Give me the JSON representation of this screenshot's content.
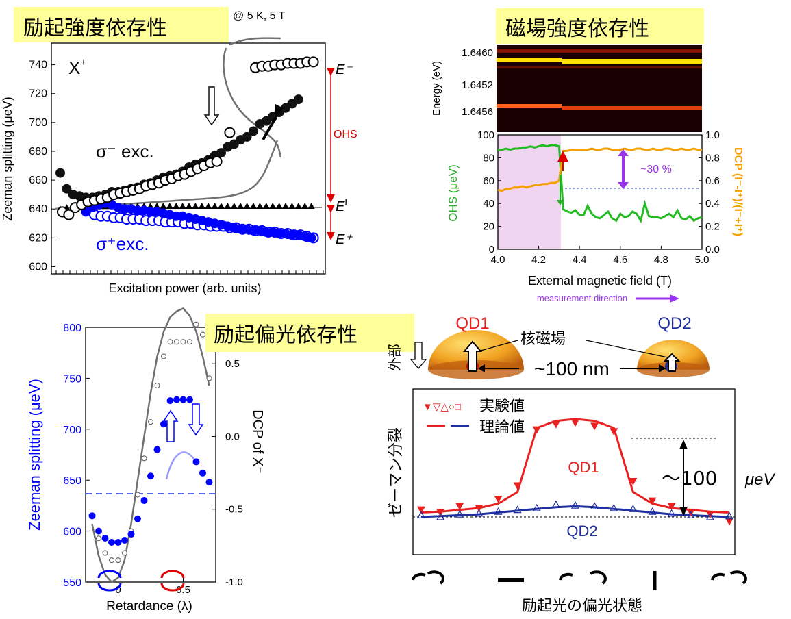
{
  "colors": {
    "highlight": "#ffff99",
    "black_series": "#000000",
    "blue_series": "#0000ff",
    "red_marker": "#e00000",
    "green_ohs": "#22bb22",
    "orange_dcp": "#f5a000",
    "purple": "#9933ee",
    "pink_region": "#f0d4f0",
    "curve_gray": "#707070",
    "qd1_red": "#e82020",
    "qd2_blue": "#2030a0"
  },
  "panels": {
    "power": {
      "heading": "励起強度依存性",
      "condition": "@ 5 K, 5 T",
      "x_plus": "X",
      "x_plus_sup": "+",
      "sigma_minus": "σ⁻ exc.",
      "sigma_plus": "σ⁺exc.",
      "e_minus": "E⁻",
      "e_l": "E",
      "e_l_sup": "L",
      "e_plus": "E⁺",
      "ohs": "OHS"
    },
    "field": {
      "heading": "磁場強度依存性",
      "energy_label": "Energy (eV)",
      "energy_ticks": [
        "1.6460",
        "1.6452",
        "1.6456"
      ],
      "dcp_axis_label": "DCP (I⁻-I⁺)/(I⁻+I⁺)",
      "percent_label": "~30 %",
      "direction_label": "measurement direction"
    },
    "polarization": {
      "heading": "励起偏光依存性",
      "right_axis_label": "DCP of X⁺"
    },
    "schematic": {
      "qd1": "QD1",
      "qd2": "QD2",
      "nuclear_field": "核磁場",
      "distance": "~100 nm",
      "external": "外部",
      "zeeman_split": "ゼーマン分裂",
      "legend_exp_markers": "▼▽△○□",
      "legend_exp": "実験値",
      "legend_theory": "理論値",
      "qd1_curve_label": "QD1",
      "qd2_curve_label": "QD2",
      "gap_label": "～100",
      "gap_unit": "μeV",
      "x_title": "励起光の偏光状態"
    }
  },
  "chart_data": [
    {
      "type": "scatter",
      "title": "",
      "xlabel": "Excitation power (arb. units)",
      "ylabel": "Zeeman splitting (μeV)",
      "ylim": [
        600,
        750
      ],
      "yticks": [
        600,
        620,
        640,
        660,
        680,
        700,
        720,
        740
      ],
      "x": [
        1,
        2,
        3,
        4,
        5,
        6,
        7,
        8,
        9,
        10,
        11,
        12,
        13,
        14,
        15,
        16,
        17,
        18,
        19,
        20,
        21,
        22,
        23,
        24,
        25,
        26,
        27,
        28,
        29,
        30,
        31,
        32,
        33,
        34,
        35,
        36,
        37,
        38,
        39,
        40
      ],
      "series": [
        {
          "name": "σ⁻ exc. filled",
          "values": [
            665,
            654,
            650,
            649,
            648,
            648,
            649,
            650,
            652,
            652,
            653,
            654,
            655,
            657,
            658,
            660,
            662,
            663,
            664,
            666,
            669,
            671,
            672,
            674,
            677,
            679,
            683,
            685,
            688,
            690,
            694,
            699,
            701,
            704,
            707,
            710,
            713,
            716,
            null,
            null
          ]
        },
        {
          "name": "σ⁻ exc. open",
          "values": [
            638,
            636,
            641,
            643,
            645,
            646,
            647,
            648,
            650,
            651,
            652,
            653,
            654,
            656,
            657,
            658,
            660,
            661,
            663,
            664,
            666,
            668,
            670,
            672,
            673,
            null,
            693,
            null,
            null,
            null,
            738,
            739,
            739,
            740,
            740,
            741,
            741,
            741,
            742,
            742
          ]
        },
        {
          "name": "σ⁺exc. filled",
          "values": [
            null,
            null,
            null,
            null,
            638,
            641,
            643,
            644,
            643,
            641,
            640,
            640,
            639,
            639,
            638,
            638,
            637,
            636,
            635,
            635,
            634,
            633,
            632,
            631,
            630,
            629,
            628,
            627,
            626,
            626,
            625,
            625,
            624,
            624,
            623,
            623,
            622,
            622,
            621,
            620
          ]
        },
        {
          "name": "σ⁺exc. open",
          "values": [
            null,
            null,
            null,
            null,
            640,
            636,
            635,
            635,
            634,
            634,
            633,
            633,
            633,
            632,
            632,
            632,
            631,
            631,
            631,
            630,
            630,
            629,
            629,
            628,
            628,
            628,
            627,
            627,
            626,
            626,
            625,
            625,
            624,
            624,
            623,
            623,
            622,
            622,
            621,
            620
          ]
        },
        {
          "name": "linear triangles",
          "values": [
            640,
            641,
            641,
            641,
            642,
            642,
            642,
            642,
            642,
            642,
            642,
            642,
            642,
            642,
            642,
            642,
            642,
            642,
            642,
            642,
            642,
            642,
            642,
            642,
            642,
            642,
            642,
            642,
            642,
            642,
            642,
            642,
            642,
            642,
            642,
            642,
            642,
            642,
            642,
            642
          ]
        }
      ],
      "legend_position": "none"
    },
    {
      "type": "line",
      "title": "",
      "xlabel": "External magnetic field (T)",
      "ylabel": "OHS (μeV)",
      "y2label": "DCP (I⁻-I⁺)/(I⁻+I⁺)",
      "xlim": [
        4.0,
        5.0
      ],
      "ylim": [
        0,
        100
      ],
      "y2lim": [
        0,
        1.0
      ],
      "xticks": [
        4.0,
        4.2,
        4.4,
        4.6,
        4.8,
        5.0
      ],
      "yticks": [
        0,
        20,
        40,
        60,
        80,
        100
      ],
      "y2ticks": [
        0.0,
        0.2,
        0.4,
        0.6,
        0.8,
        1.0
      ],
      "x": [
        4.0,
        4.02,
        4.04,
        4.06,
        4.08,
        4.1,
        4.12,
        4.14,
        4.16,
        4.18,
        4.2,
        4.22,
        4.24,
        4.26,
        4.28,
        4.3,
        4.32,
        4.34,
        4.36,
        4.38,
        4.4,
        4.42,
        4.44,
        4.46,
        4.48,
        4.5,
        4.52,
        4.54,
        4.56,
        4.58,
        4.6,
        4.62,
        4.64,
        4.66,
        4.68,
        4.7,
        4.72,
        4.74,
        4.76,
        4.78,
        4.8,
        4.82,
        4.84,
        4.86,
        4.88,
        4.9,
        4.92,
        4.94,
        4.96,
        4.98,
        5.0
      ],
      "series": [
        {
          "name": "OHS",
          "axis": "left",
          "values": [
            87,
            87,
            88,
            87,
            88,
            88,
            89,
            89,
            90,
            89,
            90,
            91,
            90,
            91,
            91,
            90,
            35,
            33,
            32,
            34,
            30,
            30,
            38,
            31,
            28,
            27,
            30,
            33,
            27,
            25,
            31,
            28,
            29,
            33,
            31,
            25,
            40,
            29,
            28,
            28,
            27,
            29,
            31,
            28,
            34,
            27,
            26,
            29,
            25,
            27,
            28
          ]
        },
        {
          "name": "DCP",
          "axis": "right",
          "values": [
            0.52,
            0.51,
            0.53,
            0.53,
            0.54,
            0.54,
            0.55,
            0.54,
            0.55,
            0.56,
            0.56,
            0.57,
            0.57,
            0.58,
            0.58,
            0.6,
            0.86,
            0.86,
            0.87,
            0.87,
            0.87,
            0.87,
            0.87,
            0.88,
            0.87,
            0.87,
            0.88,
            0.88,
            0.87,
            0.87,
            0.87,
            0.88,
            0.87,
            0.87,
            0.88,
            0.88,
            0.87,
            0.87,
            0.88,
            0.87,
            0.87,
            0.88,
            0.88,
            0.87,
            0.87,
            0.88,
            0.87,
            0.87,
            0.88,
            0.87,
            0.87
          ]
        }
      ],
      "shaded_region": [
        4.0,
        4.3
      ],
      "reference_line_y2": 0.53,
      "legend_position": "none"
    },
    {
      "type": "line",
      "title": "",
      "xlabel": "Retardance (λ)",
      "ylabel": "Zeeman splitting (μeV)",
      "y2label": "DCP of X⁺",
      "xlim": [
        -0.25,
        0.75
      ],
      "ylim": [
        550,
        800
      ],
      "y2lim": [
        -1.0,
        0.75
      ],
      "xtick_labels": [
        "0",
        "0.5"
      ],
      "yticks": [
        550,
        600,
        650,
        700,
        750,
        800
      ],
      "y2ticks": [
        "0.5",
        "0.0",
        "-0.5",
        "-1.0"
      ],
      "x": [
        -0.2,
        -0.15,
        -0.1,
        -0.05,
        0.0,
        0.05,
        0.1,
        0.15,
        0.2,
        0.25,
        0.3,
        0.35,
        0.4,
        0.45,
        0.5,
        0.55,
        0.6,
        0.65,
        0.7
      ],
      "series": [
        {
          "name": "Zeeman splitting (blue filled)",
          "axis": "left",
          "values": [
            615,
            600,
            593,
            589,
            589,
            591,
            597,
            612,
            630,
            654,
            680,
            705,
            728,
            729,
            729,
            729,
            668,
            657,
            648
          ]
        },
        {
          "name": "DCP (open gray)",
          "axis": "right",
          "values": [
            -0.55,
            -0.7,
            -0.8,
            -0.85,
            -0.85,
            -0.8,
            -0.65,
            -0.4,
            -0.15,
            0.1,
            0.35,
            0.55,
            0.65,
            0.65,
            0.65,
            0.65,
            0.77,
            0.7,
            0.4
          ]
        },
        {
          "name": "theory DCP",
          "axis": "right",
          "values": [
            -0.6,
            -0.82,
            -0.95,
            -1.0,
            -0.97,
            -0.85,
            -0.6,
            -0.3,
            0.0,
            0.3,
            0.55,
            0.72,
            0.82,
            0.86,
            0.88,
            0.83,
            0.72,
            0.55,
            0.35
          ]
        }
      ],
      "reference_line_y": 635,
      "legend_position": "none"
    },
    {
      "type": "line",
      "title": "",
      "xlabel": "励起光の偏光状態",
      "ylabel": "ゼーマン分裂",
      "x": [
        0,
        1,
        2,
        3,
        4,
        5,
        6,
        7,
        8,
        9,
        10,
        11,
        12,
        13,
        14,
        15,
        16
      ],
      "series": [
        {
          "name": "QD1 理論値",
          "values": [
            5,
            6,
            8,
            10,
            15,
            28,
            100,
            108,
            110,
            108,
            100,
            28,
            15,
            10,
            8,
            6,
            5
          ]
        },
        {
          "name": "QD2 理論値",
          "values": [
            0,
            1,
            2,
            3,
            5,
            7,
            9,
            11,
            12,
            11,
            9,
            7,
            5,
            3,
            2,
            1,
            0
          ]
        },
        {
          "name": "QD1 実験値",
          "values": [
            8,
            5,
            12,
            10,
            20,
            35,
            98,
            104,
            106,
            102,
            96,
            40,
            18,
            12,
            5,
            3,
            -5
          ]
        },
        {
          "name": "QD2 実験値",
          "values": [
            2,
            0,
            3,
            4,
            6,
            8,
            10,
            14,
            13,
            12,
            10,
            9,
            6,
            4,
            2,
            0,
            1
          ]
        }
      ],
      "legend_position": "top-left"
    }
  ]
}
